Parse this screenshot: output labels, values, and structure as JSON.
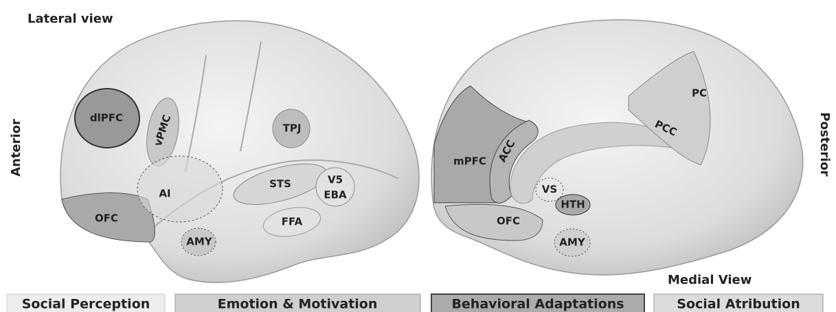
{
  "titles": {
    "lateral": "Lateral view",
    "medial": "Medial View"
  },
  "directions": {
    "anterior": "Anterior",
    "posterior": "Posterior"
  },
  "lateral_regions": [
    "dlPFC",
    "vPMC",
    "TPJ",
    "AI",
    "STS",
    "V5",
    "EBA",
    "OFC",
    "FFA",
    "AMY"
  ],
  "medial_regions": [
    "mPFC",
    "ACC",
    "VS",
    "HTH",
    "OFC",
    "AMY",
    "PC",
    "PCC"
  ],
  "legend": [
    "Social Perception",
    "Emotion & Motivation",
    "Behavioral Adaptations",
    "Social Atribution"
  ]
}
